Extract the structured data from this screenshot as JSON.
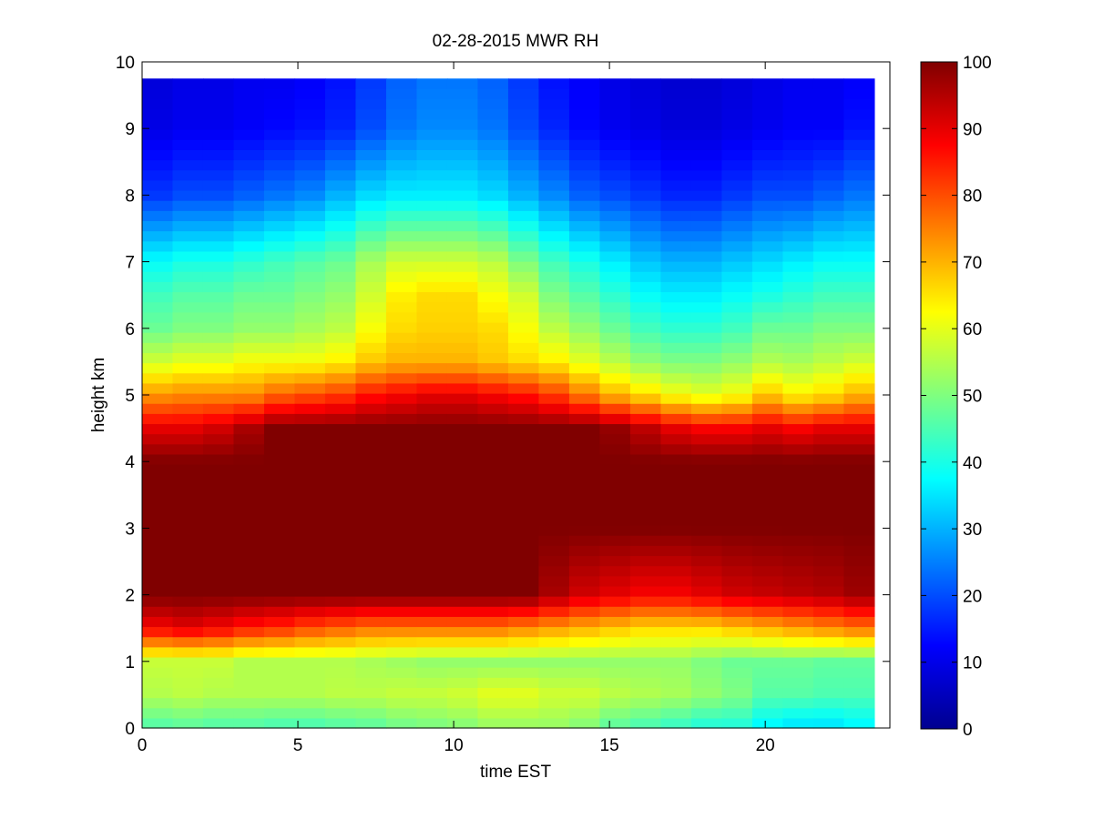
{
  "chart_data": {
    "type": "heatmap",
    "title": "02-28-2015 MWR RH",
    "xlabel": "time EST",
    "ylabel": "height km",
    "xlim": [
      0,
      24
    ],
    "ylim": [
      0,
      10
    ],
    "x_ticks": [
      0,
      5,
      10,
      15,
      20
    ],
    "y_ticks": [
      0,
      1,
      2,
      3,
      4,
      5,
      6,
      7,
      8,
      9,
      10
    ],
    "x_tick_labels": [
      "0",
      "5",
      "10",
      "15",
      "20"
    ],
    "y_tick_labels": [
      "0",
      "1",
      "2",
      "3",
      "4",
      "5",
      "6",
      "7",
      "8",
      "9",
      "10"
    ],
    "colormap": "jet",
    "clim": [
      0,
      100
    ],
    "colorbar_ticks": [
      0,
      10,
      20,
      30,
      40,
      50,
      60,
      70,
      80,
      90,
      100
    ],
    "colorbar_tick_labels": [
      "0",
      "10",
      "20",
      "30",
      "40",
      "50",
      "60",
      "70",
      "80",
      "90",
      "100"
    ],
    "grid": false,
    "time_hours": [
      0.25,
      1.25,
      2.25,
      3.25,
      4.25,
      5.25,
      6.25,
      7.25,
      8.25,
      9.25,
      10.25,
      11.25,
      12.25,
      13.25,
      14.25,
      15.25,
      16.25,
      17.25,
      18.25,
      19.25,
      20.25,
      21.25,
      22.25,
      23.25
    ],
    "height_km": [
      0,
      0.5,
      1,
      1.5,
      2,
      3,
      4,
      4.5,
      5,
      5.5,
      6,
      6.5,
      7,
      8,
      9,
      9.75
    ],
    "rh_percent": [
      [
        45,
        46,
        45,
        45,
        44,
        44,
        45,
        46,
        48,
        49,
        50,
        52,
        52,
        52,
        50,
        46,
        44,
        42,
        40,
        40,
        36,
        34,
        34,
        36
      ],
      [
        55,
        56,
        55,
        55,
        55,
        55,
        56,
        56,
        57,
        57,
        58,
        60,
        60,
        58,
        58,
        56,
        55,
        54,
        52,
        50,
        46,
        46,
        45,
        45
      ],
      [
        57,
        57,
        57,
        55,
        55,
        55,
        55,
        54,
        53,
        52,
        52,
        52,
        52,
        52,
        52,
        52,
        52,
        52,
        50,
        48,
        48,
        48,
        47,
        47
      ],
      [
        88,
        90,
        88,
        85,
        83,
        80,
        78,
        76,
        76,
        76,
        76,
        76,
        74,
        72,
        70,
        68,
        66,
        66,
        66,
        68,
        70,
        72,
        74,
        76
      ],
      [
        100,
        100,
        100,
        100,
        100,
        100,
        100,
        100,
        100,
        100,
        100,
        100,
        100,
        96,
        92,
        90,
        88,
        88,
        90,
        92,
        93,
        94,
        95,
        97
      ],
      [
        100,
        100,
        100,
        100,
        100,
        100,
        100,
        100,
        100,
        100,
        100,
        100,
        100,
        100,
        100,
        100,
        100,
        100,
        100,
        100,
        100,
        100,
        100,
        100
      ],
      [
        100,
        100,
        100,
        100,
        100,
        100,
        100,
        100,
        100,
        100,
        100,
        100,
        100,
        100,
        100,
        100,
        100,
        100,
        100,
        100,
        100,
        100,
        100,
        100
      ],
      [
        90,
        90,
        92,
        96,
        100,
        100,
        100,
        100,
        100,
        100,
        100,
        100,
        100,
        100,
        100,
        98,
        94,
        90,
        88,
        88,
        90,
        88,
        90,
        90
      ],
      [
        73,
        74,
        74,
        74,
        78,
        80,
        82,
        86,
        88,
        90,
        90,
        88,
        86,
        82,
        76,
        70,
        66,
        62,
        60,
        62,
        68,
        64,
        66,
        70
      ],
      [
        58,
        60,
        60,
        62,
        62,
        62,
        64,
        68,
        70,
        70,
        70,
        68,
        66,
        64,
        60,
        56,
        52,
        50,
        50,
        52,
        55,
        54,
        56,
        58
      ],
      [
        48,
        50,
        50,
        52,
        52,
        54,
        56,
        62,
        66,
        67,
        67,
        66,
        62,
        56,
        52,
        48,
        44,
        42,
        42,
        44,
        48,
        48,
        50,
        50
      ],
      [
        44,
        46,
        46,
        48,
        48,
        50,
        52,
        58,
        64,
        66,
        66,
        62,
        58,
        50,
        46,
        42,
        38,
        36,
        36,
        38,
        40,
        42,
        44,
        44
      ],
      [
        38,
        40,
        40,
        42,
        44,
        46,
        48,
        54,
        58,
        58,
        58,
        56,
        50,
        44,
        40,
        36,
        32,
        30,
        30,
        32,
        34,
        36,
        38,
        38
      ],
      [
        18,
        20,
        20,
        22,
        24,
        26,
        30,
        34,
        36,
        36,
        36,
        34,
        30,
        26,
        22,
        20,
        18,
        16,
        16,
        18,
        20,
        20,
        22,
        24
      ],
      [
        10,
        11,
        11,
        12,
        13,
        14,
        16,
        20,
        24,
        26,
        26,
        24,
        20,
        16,
        13,
        11,
        10,
        9,
        9,
        10,
        11,
        12,
        12,
        14
      ],
      [
        9,
        10,
        10,
        11,
        11,
        12,
        14,
        18,
        22,
        24,
        24,
        22,
        18,
        14,
        12,
        10,
        9,
        8,
        8,
        9,
        10,
        11,
        11,
        12
      ]
    ],
    "data_extent": {
      "time": [
        0,
        23.5
      ],
      "height": [
        0,
        9.75
      ]
    }
  }
}
